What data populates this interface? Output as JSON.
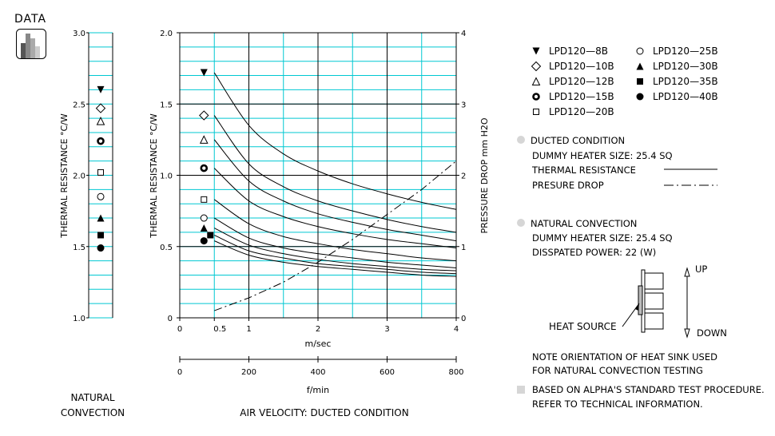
{
  "header": {
    "title": "DATA"
  },
  "icon": {
    "name": "bar-chart-icon"
  },
  "natural_panel": {
    "label_line1": "NATURAL",
    "label_line2": "CONVECTION",
    "ylabel": "THERMAL RESISTANCE °C/W",
    "ylim": [
      1.0,
      3.0
    ],
    "yticks": [
      "1.0",
      "1.5",
      "2.0",
      "2.5",
      "3.0"
    ]
  },
  "ducted_panel": {
    "footer_label": "AIR VELOCITY:  DUCTED CONDITION",
    "ylabel_left": "THERMAL RESISTANCE °C/W",
    "ylabel_right": "PRESSURE DROP   mm H2O",
    "xlabel_msec": "m/sec",
    "xlabel_fmin": "f/min"
  },
  "chart_data": [
    {
      "type": "scatter",
      "title": "NATURAL CONVECTION",
      "ylabel": "THERMAL RESISTANCE °C/W",
      "ylim": [
        1.0,
        3.0
      ],
      "points": [
        {
          "series": "LPD120-8B",
          "y": 2.6
        },
        {
          "series": "LPD120-10B",
          "y": 2.47
        },
        {
          "series": "LPD120-12B",
          "y": 2.38
        },
        {
          "series": "LPD120-15B",
          "y": 2.24
        },
        {
          "series": "LPD120-20B",
          "y": 2.02
        },
        {
          "series": "LPD120-25B",
          "y": 1.85
        },
        {
          "series": "LPD120-30B",
          "y": 1.7
        },
        {
          "series": "LPD120-35B",
          "y": 1.58
        },
        {
          "series": "LPD120-40B",
          "y": 1.49
        }
      ]
    },
    {
      "type": "line",
      "title": "AIR VELOCITY: DUCTED CONDITION",
      "xlabel": "m/sec",
      "x2label": "f/min",
      "ylabel": "THERMAL RESISTANCE °C/W",
      "y2label": "PRESSURE DROP mm H2O",
      "xlim": [
        0,
        4
      ],
      "ylim": [
        0,
        2.0
      ],
      "y2lim": [
        0,
        4
      ],
      "xticks": [
        "0",
        "0.5",
        "1",
        "2",
        "3",
        "4"
      ],
      "yticks": [
        "0",
        "0.5",
        "1.0",
        "1.5",
        "2.0"
      ],
      "y2ticks": [
        "0",
        "1",
        "2",
        "3",
        "4"
      ],
      "x2ticks": [
        "0",
        "200",
        "400",
        "600",
        "800"
      ],
      "x": [
        0.5,
        1.0,
        1.5,
        2.0,
        2.5,
        3.0,
        3.5,
        4.0
      ],
      "series": [
        {
          "name": "LPD120-8B",
          "values": [
            1.72,
            1.35,
            1.15,
            1.03,
            0.94,
            0.87,
            0.81,
            0.76
          ]
        },
        {
          "name": "LPD120-10B",
          "values": [
            1.42,
            1.08,
            0.92,
            0.82,
            0.75,
            0.69,
            0.64,
            0.6
          ]
        },
        {
          "name": "LPD120-12B",
          "values": [
            1.25,
            0.96,
            0.82,
            0.73,
            0.67,
            0.62,
            0.58,
            0.54
          ]
        },
        {
          "name": "LPD120-15B",
          "values": [
            1.05,
            0.82,
            0.71,
            0.64,
            0.59,
            0.55,
            0.52,
            0.49
          ]
        },
        {
          "name": "LPD120-20B",
          "values": [
            0.83,
            0.66,
            0.57,
            0.52,
            0.48,
            0.45,
            0.42,
            0.4
          ]
        },
        {
          "name": "LPD120-25B",
          "values": [
            0.7,
            0.56,
            0.49,
            0.45,
            0.42,
            0.39,
            0.37,
            0.35
          ]
        },
        {
          "name": "LPD120-30B",
          "values": [
            0.63,
            0.51,
            0.45,
            0.41,
            0.38,
            0.36,
            0.34,
            0.33
          ]
        },
        {
          "name": "LPD120-35B",
          "values": [
            0.58,
            0.47,
            0.42,
            0.38,
            0.36,
            0.34,
            0.32,
            0.31
          ]
        },
        {
          "name": "LPD120-40B",
          "values": [
            0.54,
            0.44,
            0.39,
            0.36,
            0.34,
            0.32,
            0.3,
            0.29
          ]
        }
      ],
      "pressure_drop": {
        "x": [
          0.5,
          1.0,
          1.5,
          2.0,
          2.5,
          3.0,
          3.5,
          4.0
        ],
        "values": [
          0.1,
          0.28,
          0.5,
          0.78,
          1.1,
          1.45,
          1.8,
          2.2
        ]
      },
      "ducted_markers_x": 0.35
    }
  ],
  "legend": {
    "items": [
      {
        "symbol": "tri-down-filled",
        "label": "LPD120—8B"
      },
      {
        "symbol": "diamond-open",
        "label": "LPD120—10B"
      },
      {
        "symbol": "tri-up-open",
        "label": "LPD120—12B"
      },
      {
        "symbol": "circle-thick",
        "label": "LPD120—15B"
      },
      {
        "symbol": "square-open",
        "label": "LPD120—20B"
      },
      {
        "symbol": "circle-open",
        "label": "LPD120—25B"
      },
      {
        "symbol": "tri-up-filled",
        "label": "LPD120—30B"
      },
      {
        "symbol": "square-filled",
        "label": "LPD120—35B"
      },
      {
        "symbol": "circle-filled",
        "label": "LPD120—40B"
      }
    ]
  },
  "notes": {
    "ducted_title": "DUCTED CONDITION",
    "ducted_heater": "DUMMY HEATER SIZE:  25.4 SQ",
    "thermal_resistance": "THERMAL RESISTANCE",
    "pressure_drop": "PRESURE DROP",
    "natural_title": "NATURAL CONVECTION",
    "natural_heater": "DUMMY HEATER SIZE:  25.4 SQ",
    "dissipated_power": "DISSPATED POWER:   22 (W)",
    "up": "UP",
    "down": "DOWN",
    "heat_source": "HEAT SOURCE",
    "orientation_1": "NOTE ORIENTATION OF HEAT SINK USED",
    "orientation_2": "FOR NATURAL CONVECTION TESTING",
    "based_1": "BASED ON ALPHA'S STANDARD TEST PROCEDURE.",
    "based_2": "REFER TO TECHNICAL INFORMATION."
  },
  "colors": {
    "grid": "#00c8d2",
    "bullet": "#d6d6d6"
  }
}
